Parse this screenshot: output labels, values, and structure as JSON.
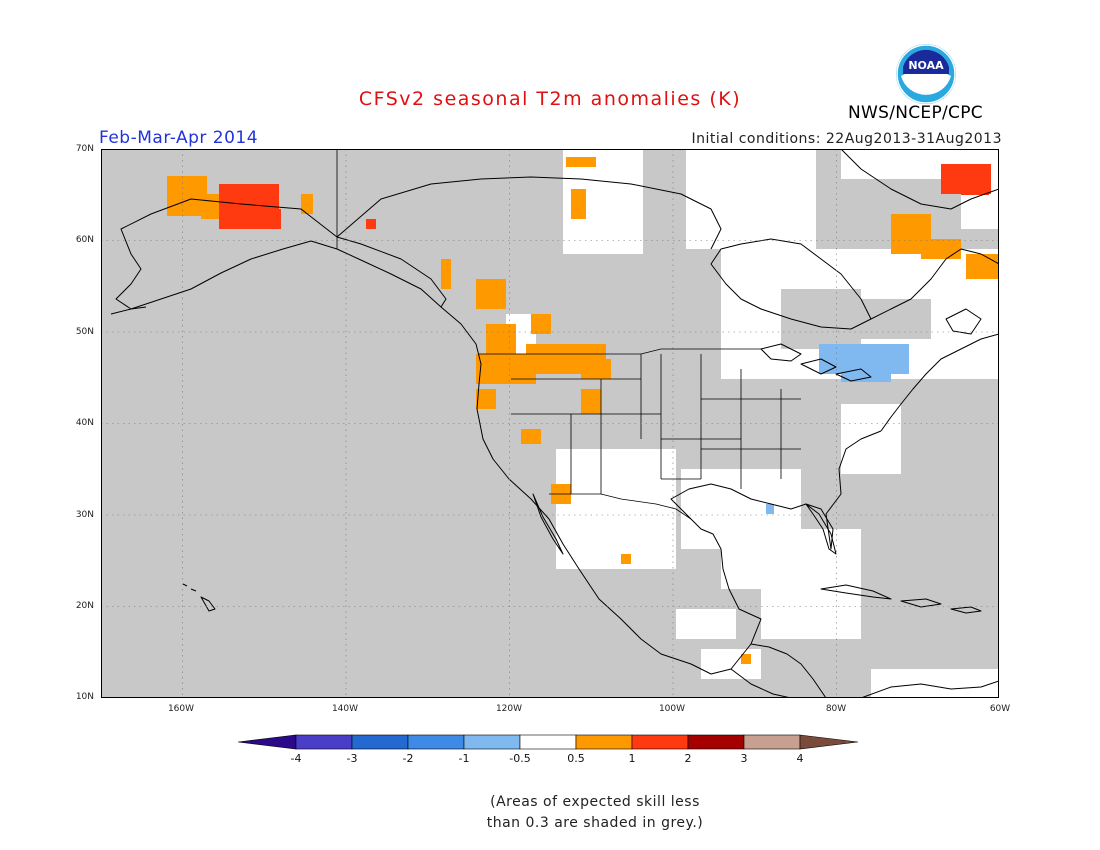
{
  "title": "CFSv2 seasonal T2m anomalies (K)",
  "period": "Feb-Mar-Apr 2014",
  "initial_conditions": "Initial conditions: 22Aug2013-31Aug2013",
  "agency": "NWS/NCEP/CPC",
  "logo_text": "NOAA",
  "map": {
    "lon_range": [
      -172,
      -60
    ],
    "lat_range": [
      10,
      70
    ],
    "lat_ticks": [
      "70N",
      "60N",
      "50N",
      "40N",
      "30N",
      "20N",
      "10N"
    ],
    "lon_ticks": [
      "160W",
      "140W",
      "120W",
      "100W",
      "80W",
      "60W"
    ]
  },
  "colorbar": {
    "labels": [
      "-4",
      "-3",
      "-2",
      "-1",
      "-0.5",
      "0.5",
      "1",
      "2",
      "3",
      "4"
    ],
    "colors": [
      "#2a0a8a",
      "#4a3ec8",
      "#2468d2",
      "#3e8ae6",
      "#80b8f0",
      "#ffffff",
      "#ff9900",
      "#ff3a10",
      "#a50000",
      "#c8a090",
      "#7a4a3a"
    ]
  },
  "note": {
    "line1": "(Areas of expected skill less",
    "line2": "than 0.3 are shaded in grey.)"
  },
  "colors": {
    "grey_low_skill": "#c8c8c8",
    "neutral": "#ffffff",
    "warm_1": "#ff9900",
    "warm_2": "#ff3a10",
    "cool_1": "#80b8f0"
  }
}
